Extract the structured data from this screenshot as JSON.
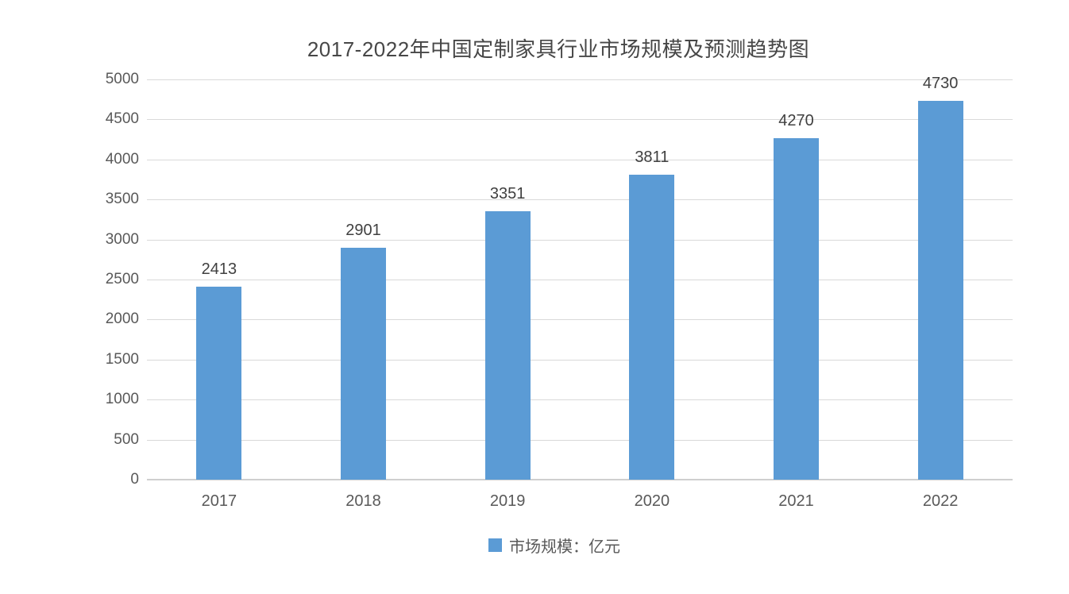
{
  "chart_data": {
    "type": "bar",
    "title": "2017-2022年中国定制家具行业市场规模及预测趋势图",
    "categories": [
      "2017",
      "2018",
      "2019",
      "2020",
      "2021",
      "2022"
    ],
    "series": [
      {
        "name": "市场规模：亿元",
        "values": [
          2413,
          2901,
          3351,
          3811,
          4270,
          4730
        ]
      }
    ],
    "xlabel": "",
    "ylabel": "",
    "ylim": [
      0,
      5000
    ],
    "ytick_interval": 500,
    "yticks": [
      0,
      500,
      1000,
      1500,
      2000,
      2500,
      3000,
      3500,
      4000,
      4500,
      5000
    ],
    "grid": true,
    "data_labels": true,
    "legend_position": "bottom",
    "bar_color": "#5b9bd5",
    "gridline_color": "#d9d9d9",
    "axis_line_color": "#cfcfcf",
    "tick_label_color": "#595959",
    "data_label_color": "#404040",
    "title_color": "#474747"
  }
}
